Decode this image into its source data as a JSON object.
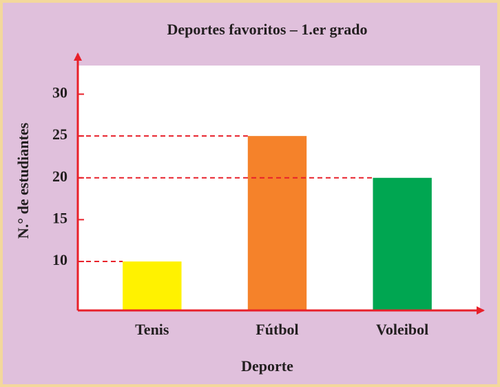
{
  "chart_data": {
    "type": "bar",
    "title": "Deportes favoritos – 1.er grado",
    "x_label": "Deporte",
    "y_label": "N.° de estudiantes",
    "categories": [
      "Tenis",
      "Fútbol",
      "Voleibol"
    ],
    "values": [
      10,
      25,
      20
    ],
    "colors": [
      "#fff200",
      "#f5822a",
      "#00a651"
    ],
    "ylim": [
      4.15,
      34
    ],
    "yticks": [
      10,
      15,
      20,
      25,
      30
    ]
  }
}
